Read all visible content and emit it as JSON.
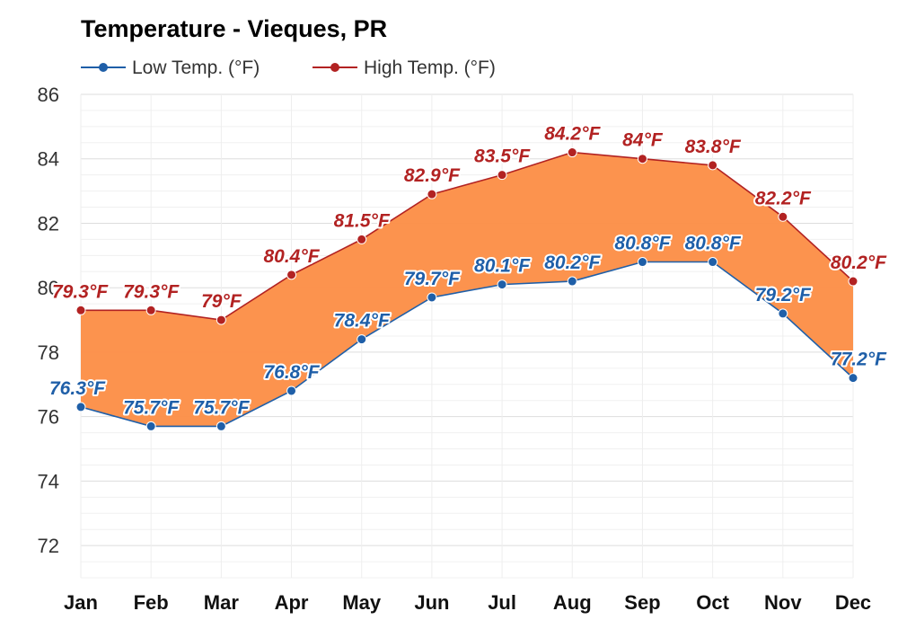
{
  "chart_data": {
    "type": "line",
    "title": "Temperature - Vieques, PR",
    "categories": [
      "Jan",
      "Feb",
      "Mar",
      "Apr",
      "May",
      "Jun",
      "Jul",
      "Aug",
      "Sep",
      "Oct",
      "Nov",
      "Dec"
    ],
    "series": [
      {
        "name": "Low Temp. (°F)",
        "color": "#1f5fa8",
        "values": [
          76.3,
          75.7,
          75.7,
          76.8,
          78.4,
          79.7,
          80.1,
          80.2,
          80.8,
          80.8,
          79.2,
          77.2
        ],
        "labels": [
          "76.3°F",
          "75.7°F",
          "75.7°F",
          "76.8°F",
          "78.4°F",
          "79.7°F",
          "80.1°F",
          "80.2°F",
          "80.8°F",
          "80.8°F",
          "79.2°F",
          "77.2°F"
        ]
      },
      {
        "name": "High Temp. (°F)",
        "color": "#b22222",
        "values": [
          79.3,
          79.3,
          79.0,
          80.4,
          81.5,
          82.9,
          83.5,
          84.2,
          84.0,
          83.8,
          82.2,
          80.2
        ],
        "labels": [
          "79.3°F",
          "79.3°F",
          "79°F",
          "80.4°F",
          "81.5°F",
          "82.9°F",
          "83.5°F",
          "84.2°F",
          "84°F",
          "83.8°F",
          "82.2°F",
          "80.2°F"
        ]
      }
    ],
    "band_fill_color": "#fc8d44",
    "yticks": [
      "72",
      "74",
      "76",
      "78",
      "80",
      "82",
      "84",
      "86"
    ],
    "ylim": [
      71,
      86
    ],
    "xlabel": "",
    "ylabel": "",
    "grid": true,
    "legend_position": "top-left"
  }
}
